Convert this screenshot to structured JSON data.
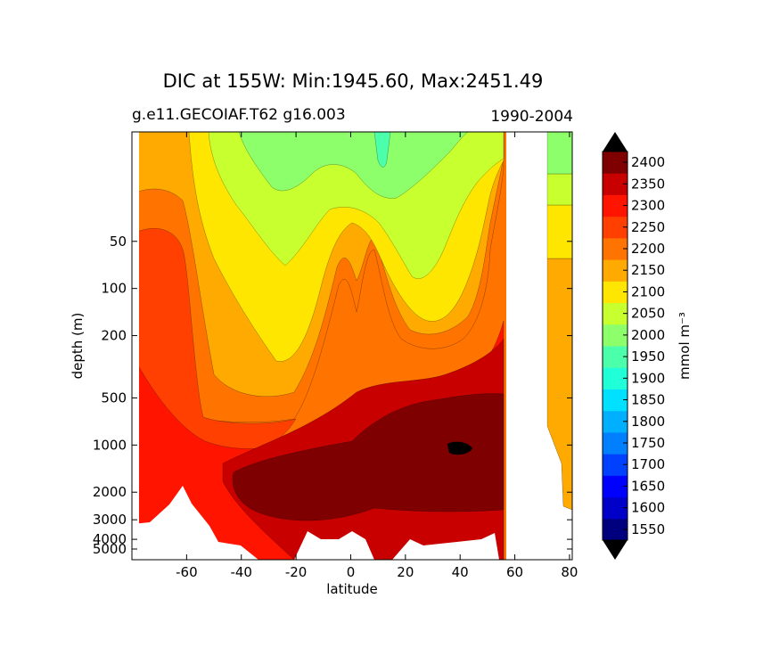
{
  "chart_data": {
    "type": "contourf",
    "title": "DIC at 155W: Min:1945.60, Max:2451.49",
    "subtitle_left": "g.e11.GECOIAF.T62 g16.003",
    "subtitle_right": "1990-2004",
    "xlabel": "latitude",
    "ylabel": "depth (m)",
    "xlim": [
      -80,
      81
    ],
    "ylim": [
      5400,
      10
    ],
    "yscale": "log-like",
    "x_ticks": [
      -60,
      -40,
      -20,
      0,
      20,
      40,
      60,
      80
    ],
    "y_ticks": [
      50,
      100,
      200,
      500,
      1000,
      2000,
      3000,
      4000,
      5000
    ],
    "colorbar": {
      "label": "mmol m⁻³",
      "levels": [
        1550,
        1600,
        1650,
        1700,
        1750,
        1800,
        1850,
        1900,
        1950,
        2000,
        2050,
        2100,
        2150,
        2200,
        2250,
        2300,
        2350,
        2400
      ],
      "colors": [
        "#00007f",
        "#0000c8",
        "#0000ff",
        "#0040ff",
        "#0080ff",
        "#00b0ff",
        "#00e0ff",
        "#20ffd8",
        "#4cffaa",
        "#8cff6a",
        "#c8ff2e",
        "#ffe600",
        "#ffaa00",
        "#ff7300",
        "#ff4000",
        "#ff1400",
        "#c80000",
        "#7f0000"
      ],
      "extend": "both"
    }
  }
}
